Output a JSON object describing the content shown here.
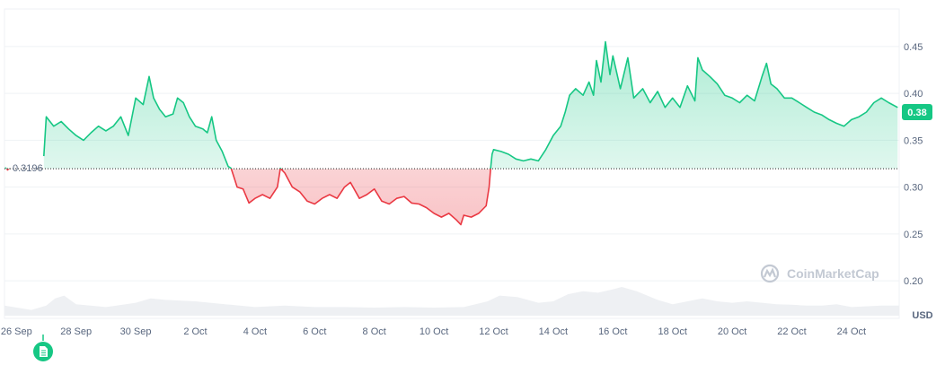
{
  "chart_data": {
    "type": "area",
    "baseline": 0.3196,
    "baseline_label": "0.3196",
    "current_value": 0.38,
    "current_label": "0.38",
    "currency": "USD",
    "watermark": "CoinMarketCap",
    "ylim": [
      0.16,
      0.49
    ],
    "y_ticks": [
      {
        "v": 0.45,
        "label": "0.45"
      },
      {
        "v": 0.4,
        "label": "0.40"
      },
      {
        "v": 0.35,
        "label": "0.35"
      },
      {
        "v": 0.3,
        "label": "0.30"
      },
      {
        "v": 0.25,
        "label": "0.25"
      },
      {
        "v": 0.2,
        "label": "0.20"
      }
    ],
    "xlim": [
      25.6,
      55.6
    ],
    "x_ticks": [
      {
        "d": 26,
        "label": "26 Sep"
      },
      {
        "d": 28,
        "label": "28 Sep"
      },
      {
        "d": 30,
        "label": "30 Sep"
      },
      {
        "d": 32,
        "label": "2 Oct"
      },
      {
        "d": 34,
        "label": "4 Oct"
      },
      {
        "d": 36,
        "label": "6 Oct"
      },
      {
        "d": 38,
        "label": "8 Oct"
      },
      {
        "d": 40,
        "label": "10 Oct"
      },
      {
        "d": 42,
        "label": "12 Oct"
      },
      {
        "d": 44,
        "label": "14 Oct"
      },
      {
        "d": 46,
        "label": "16 Oct"
      },
      {
        "d": 48,
        "label": "18 Oct"
      },
      {
        "d": 50,
        "label": "20 Oct"
      },
      {
        "d": 52,
        "label": "22 Oct"
      },
      {
        "d": 54,
        "label": "24 Oct"
      }
    ],
    "price": [
      [
        25.62,
        0.321
      ],
      [
        25.66,
        0.32
      ],
      [
        25.7,
        0.318
      ],
      [
        25.74,
        0.319
      ],
      [
        25.78,
        0.32
      ],
      [
        26.92,
        0.333
      ],
      [
        27.0,
        0.375
      ],
      [
        27.25,
        0.365
      ],
      [
        27.5,
        0.37
      ],
      [
        27.75,
        0.362
      ],
      [
        28.0,
        0.355
      ],
      [
        28.25,
        0.35
      ],
      [
        28.5,
        0.358
      ],
      [
        28.75,
        0.365
      ],
      [
        29.0,
        0.36
      ],
      [
        29.25,
        0.365
      ],
      [
        29.5,
        0.375
      ],
      [
        29.75,
        0.355
      ],
      [
        30.0,
        0.395
      ],
      [
        30.25,
        0.388
      ],
      [
        30.45,
        0.418
      ],
      [
        30.6,
        0.395
      ],
      [
        30.8,
        0.383
      ],
      [
        31.0,
        0.375
      ],
      [
        31.25,
        0.378
      ],
      [
        31.4,
        0.395
      ],
      [
        31.6,
        0.39
      ],
      [
        31.8,
        0.375
      ],
      [
        32.0,
        0.365
      ],
      [
        32.25,
        0.362
      ],
      [
        32.4,
        0.358
      ],
      [
        32.55,
        0.375
      ],
      [
        32.7,
        0.35
      ],
      [
        32.9,
        0.338
      ],
      [
        33.1,
        0.322
      ],
      [
        33.2,
        0.32
      ],
      [
        33.4,
        0.3
      ],
      [
        33.6,
        0.298
      ],
      [
        33.8,
        0.283
      ],
      [
        34.0,
        0.288
      ],
      [
        34.25,
        0.292
      ],
      [
        34.5,
        0.288
      ],
      [
        34.75,
        0.3
      ],
      [
        34.85,
        0.32
      ],
      [
        35.0,
        0.315
      ],
      [
        35.25,
        0.3
      ],
      [
        35.5,
        0.295
      ],
      [
        35.75,
        0.285
      ],
      [
        36.0,
        0.282
      ],
      [
        36.25,
        0.288
      ],
      [
        36.5,
        0.292
      ],
      [
        36.75,
        0.288
      ],
      [
        37.0,
        0.3
      ],
      [
        37.2,
        0.305
      ],
      [
        37.5,
        0.288
      ],
      [
        37.75,
        0.292
      ],
      [
        38.0,
        0.298
      ],
      [
        38.25,
        0.285
      ],
      [
        38.5,
        0.282
      ],
      [
        38.75,
        0.288
      ],
      [
        39.0,
        0.29
      ],
      [
        39.25,
        0.283
      ],
      [
        39.5,
        0.282
      ],
      [
        39.75,
        0.278
      ],
      [
        40.0,
        0.272
      ],
      [
        40.25,
        0.268
      ],
      [
        40.5,
        0.272
      ],
      [
        40.75,
        0.265
      ],
      [
        40.9,
        0.26
      ],
      [
        41.0,
        0.27
      ],
      [
        41.25,
        0.268
      ],
      [
        41.5,
        0.272
      ],
      [
        41.75,
        0.28
      ],
      [
        41.85,
        0.3
      ],
      [
        41.9,
        0.32
      ],
      [
        41.95,
        0.335
      ],
      [
        42.0,
        0.34
      ],
      [
        42.25,
        0.338
      ],
      [
        42.5,
        0.335
      ],
      [
        42.75,
        0.33
      ],
      [
        43.0,
        0.328
      ],
      [
        43.25,
        0.33
      ],
      [
        43.5,
        0.328
      ],
      [
        43.75,
        0.34
      ],
      [
        44.0,
        0.355
      ],
      [
        44.25,
        0.365
      ],
      [
        44.4,
        0.38
      ],
      [
        44.55,
        0.398
      ],
      [
        44.75,
        0.405
      ],
      [
        45.0,
        0.398
      ],
      [
        45.2,
        0.412
      ],
      [
        45.35,
        0.398
      ],
      [
        45.45,
        0.435
      ],
      [
        45.6,
        0.412
      ],
      [
        45.75,
        0.455
      ],
      [
        45.9,
        0.42
      ],
      [
        46.0,
        0.44
      ],
      [
        46.25,
        0.405
      ],
      [
        46.5,
        0.438
      ],
      [
        46.7,
        0.395
      ],
      [
        47.0,
        0.405
      ],
      [
        47.25,
        0.39
      ],
      [
        47.5,
        0.402
      ],
      [
        47.75,
        0.385
      ],
      [
        48.0,
        0.395
      ],
      [
        48.25,
        0.385
      ],
      [
        48.5,
        0.408
      ],
      [
        48.75,
        0.392
      ],
      [
        48.85,
        0.438
      ],
      [
        49.0,
        0.425
      ],
      [
        49.25,
        0.418
      ],
      [
        49.5,
        0.41
      ],
      [
        49.75,
        0.398
      ],
      [
        50.0,
        0.395
      ],
      [
        50.25,
        0.39
      ],
      [
        50.5,
        0.398
      ],
      [
        50.75,
        0.392
      ],
      [
        51.0,
        0.418
      ],
      [
        51.15,
        0.432
      ],
      [
        51.3,
        0.41
      ],
      [
        51.5,
        0.405
      ],
      [
        51.75,
        0.395
      ],
      [
        52.0,
        0.395
      ],
      [
        52.25,
        0.39
      ],
      [
        52.5,
        0.385
      ],
      [
        52.75,
        0.38
      ],
      [
        53.0,
        0.377
      ],
      [
        53.25,
        0.372
      ],
      [
        53.5,
        0.368
      ],
      [
        53.75,
        0.365
      ],
      [
        54.0,
        0.372
      ],
      [
        54.25,
        0.375
      ],
      [
        54.5,
        0.38
      ],
      [
        54.75,
        0.39
      ],
      [
        55.0,
        0.395
      ],
      [
        55.25,
        0.39
      ],
      [
        55.55,
        0.385
      ]
    ],
    "volume": [
      [
        25.6,
        0.35
      ],
      [
        26.5,
        0.2
      ],
      [
        27.0,
        0.35
      ],
      [
        27.3,
        0.6
      ],
      [
        27.6,
        0.7
      ],
      [
        28.0,
        0.4
      ],
      [
        29.0,
        0.3
      ],
      [
        30.0,
        0.45
      ],
      [
        30.5,
        0.6
      ],
      [
        31.0,
        0.55
      ],
      [
        32.0,
        0.5
      ],
      [
        33.0,
        0.4
      ],
      [
        34.0,
        0.3
      ],
      [
        35.0,
        0.35
      ],
      [
        36.0,
        0.3
      ],
      [
        37.0,
        0.3
      ],
      [
        38.0,
        0.28
      ],
      [
        39.0,
        0.3
      ],
      [
        40.0,
        0.28
      ],
      [
        41.0,
        0.3
      ],
      [
        41.8,
        0.5
      ],
      [
        42.2,
        0.7
      ],
      [
        42.8,
        0.65
      ],
      [
        43.5,
        0.45
      ],
      [
        44.0,
        0.5
      ],
      [
        44.5,
        0.75
      ],
      [
        45.0,
        0.85
      ],
      [
        45.5,
        0.8
      ],
      [
        46.0,
        0.92
      ],
      [
        46.3,
        1.0
      ],
      [
        46.8,
        0.85
      ],
      [
        47.5,
        0.55
      ],
      [
        48.0,
        0.4
      ],
      [
        48.5,
        0.5
      ],
      [
        49.0,
        0.6
      ],
      [
        49.5,
        0.5
      ],
      [
        50.0,
        0.45
      ],
      [
        50.5,
        0.5
      ],
      [
        51.0,
        0.45
      ],
      [
        51.5,
        0.4
      ],
      [
        52.0,
        0.38
      ],
      [
        52.5,
        0.35
      ],
      [
        53.0,
        0.35
      ],
      [
        53.5,
        0.4
      ],
      [
        54.0,
        0.3
      ],
      [
        55.0,
        0.35
      ],
      [
        55.6,
        0.35
      ]
    ]
  }
}
